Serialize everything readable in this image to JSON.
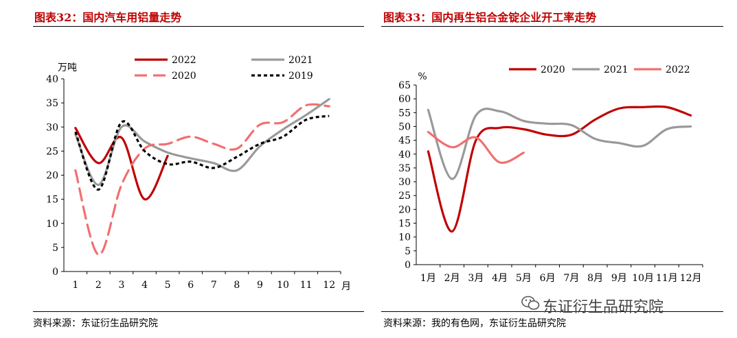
{
  "charts": {
    "left": {
      "title": "图表32：国内汽车用铝量走势",
      "source": "资料来源：东证衍生品研究院"
    },
    "right": {
      "title": "图表33：国内再生铝合金锭企业开工率走势",
      "source": "资料来源：我的有色网，东证衍生品研究院"
    }
  },
  "watermark": {
    "text": "东证衍生品研究院",
    "icon": "wechat-icon"
  },
  "chart_data": [
    {
      "type": "line",
      "title": "图表32：国内汽车用铝量走势",
      "ylabel": "万吨",
      "xlabel": "月",
      "categories": [
        "1",
        "2",
        "3",
        "4",
        "5",
        "6",
        "7",
        "8",
        "9",
        "10",
        "11",
        "12"
      ],
      "ylim": [
        0,
        40
      ],
      "yticks": [
        "0",
        "5",
        "10",
        "15",
        "20",
        "25",
        "30",
        "35",
        "40"
      ],
      "legend": "top",
      "series": [
        {
          "name": "2022",
          "color": "#c00000",
          "dash": "solid",
          "values": [
            29.8,
            22.5,
            27.8,
            15.0,
            24.0,
            null,
            null,
            null,
            null,
            null,
            null,
            null
          ]
        },
        {
          "name": "2021",
          "color": "#999999",
          "dash": "solid",
          "values": [
            28.5,
            18.0,
            30.0,
            27.0,
            24.7,
            23.5,
            22.5,
            21.0,
            26.0,
            29.5,
            32.5,
            35.8
          ]
        },
        {
          "name": "2020",
          "color": "#f07070",
          "dash": "longdash",
          "values": [
            21.0,
            3.5,
            18.0,
            25.5,
            26.5,
            28.0,
            26.5,
            25.5,
            30.5,
            31.0,
            34.5,
            34.3
          ]
        },
        {
          "name": "2019",
          "color": "#000000",
          "dash": "dot",
          "values": [
            29.0,
            17.0,
            31.0,
            25.0,
            22.3,
            22.8,
            21.5,
            23.8,
            26.5,
            28.0,
            31.5,
            32.3
          ]
        }
      ]
    },
    {
      "type": "line",
      "title": "图表33：国内再生铝合金锭企业开工率走势",
      "ylabel": "%",
      "categories": [
        "1月",
        "2月",
        "3月",
        "4月",
        "5月",
        "6月",
        "7月",
        "8月",
        "9月",
        "10月",
        "11月",
        "12月"
      ],
      "ylim": [
        0,
        65
      ],
      "yticks": [
        "0",
        "5",
        "10",
        "15",
        "20",
        "25",
        "30",
        "35",
        "40",
        "45",
        "50",
        "55",
        "60",
        "65"
      ],
      "legend": "top",
      "series": [
        {
          "name": "2020",
          "color": "#c00000",
          "dash": "solid",
          "values": [
            41.0,
            12.0,
            45.0,
            49.5,
            49.0,
            47.0,
            47.0,
            52.5,
            56.5,
            57.0,
            57.0,
            54.0
          ]
        },
        {
          "name": "2021",
          "color": "#999999",
          "dash": "solid",
          "values": [
            56.0,
            31.0,
            54.0,
            55.5,
            52.0,
            51.0,
            50.5,
            45.5,
            44.0,
            43.0,
            49.0,
            50.0
          ]
        },
        {
          "name": "2022",
          "color": "#f07070",
          "dash": "solid",
          "values": [
            48.0,
            42.5,
            46.0,
            37.0,
            40.5,
            null,
            null,
            null,
            null,
            null,
            null,
            null
          ]
        }
      ]
    }
  ]
}
